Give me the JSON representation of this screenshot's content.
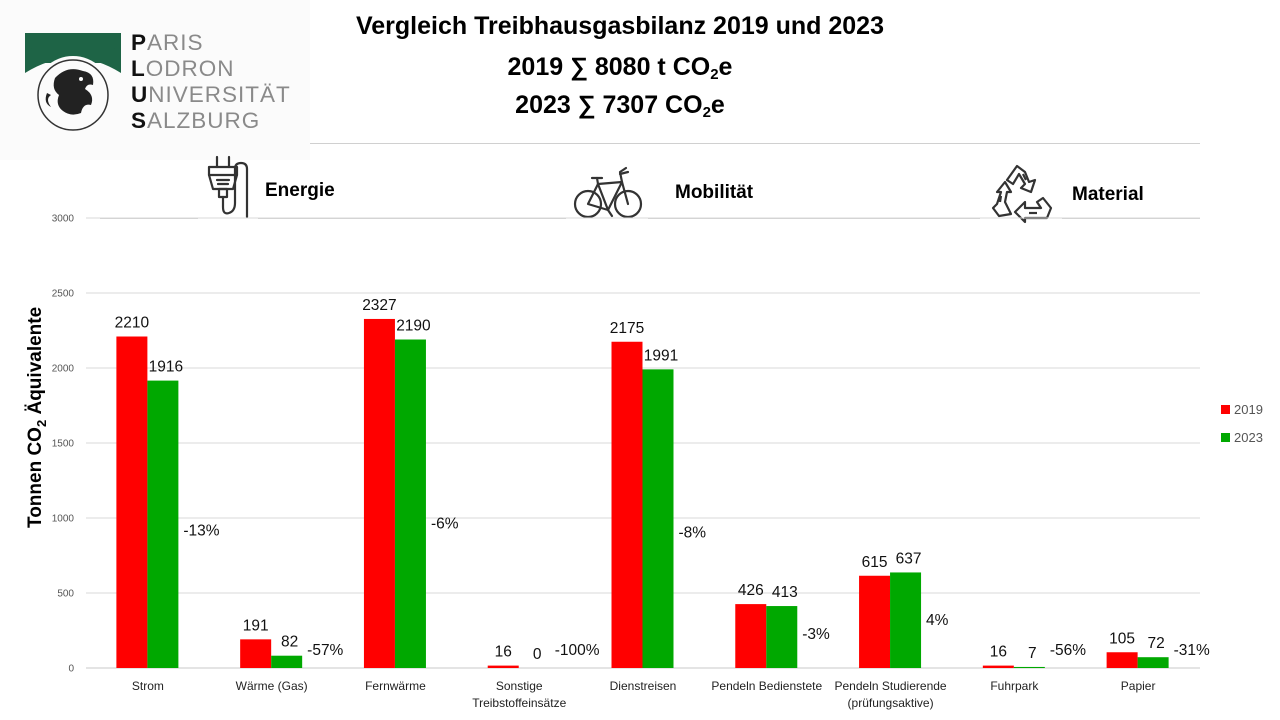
{
  "logo": {
    "lines": [
      {
        "initial": "P",
        "rest": "ARIS"
      },
      {
        "initial": "L",
        "rest": "ODRON"
      },
      {
        "initial": "U",
        "rest": "NIVERSITÄT"
      },
      {
        "initial": "S",
        "rest": "ALZBURG"
      }
    ],
    "brand_color": "#1e6446"
  },
  "header": {
    "title": "Vergleich Treibhausgasbilanz 2019 und 2023",
    "line2_prefix": "2019 ∑ 8080 t CO",
    "line2_sub": "2",
    "line2_suffix": "e",
    "line3_prefix": "2023 ∑ 7307 CO",
    "line3_sub": "2",
    "line3_suffix": "e"
  },
  "sections": [
    {
      "label": "Energie",
      "icon": "plug-icon"
    },
    {
      "label": "Mobilität",
      "icon": "bicycle-icon"
    },
    {
      "label": "Material",
      "icon": "recycle-icon"
    }
  ],
  "chart_data": {
    "type": "bar",
    "title": "Vergleich Treibhausgasbilanz 2019 und 2023",
    "ylabel_prefix": "Tonnen  CO",
    "ylabel_sub": "2",
    "ylabel_suffix": " Äquivalente",
    "xlabel": "",
    "ylim": [
      0,
      3000
    ],
    "yticks": [
      0,
      500,
      1000,
      1500,
      2000,
      2500,
      3000
    ],
    "grid": true,
    "legend_position": "right",
    "categories": [
      [
        "Strom"
      ],
      [
        "Wärme (Gas)"
      ],
      [
        "Fernwärme"
      ],
      [
        "Sonstige",
        "Treibstoffeinsätze"
      ],
      [
        "Dienstreisen"
      ],
      [
        "Pendeln Bedienstete"
      ],
      [
        "Pendeln  Studierende",
        "(prüfungsaktive)"
      ],
      [
        "Fuhrpark"
      ],
      [
        "Papier"
      ]
    ],
    "series": [
      {
        "name": "2019",
        "color": "#ff0000",
        "values": [
          2210,
          191,
          2327,
          16,
          2175,
          426,
          615,
          16,
          105
        ]
      },
      {
        "name": "2023",
        "color": "#00a800",
        "values": [
          1916,
          82,
          2190,
          0,
          1991,
          413,
          637,
          7,
          72
        ]
      }
    ],
    "change_labels": [
      "-13%",
      "-57%",
      "-6%",
      "-100%",
      "-8%",
      "-3%",
      "4%",
      "-56%",
      "-31%"
    ]
  }
}
